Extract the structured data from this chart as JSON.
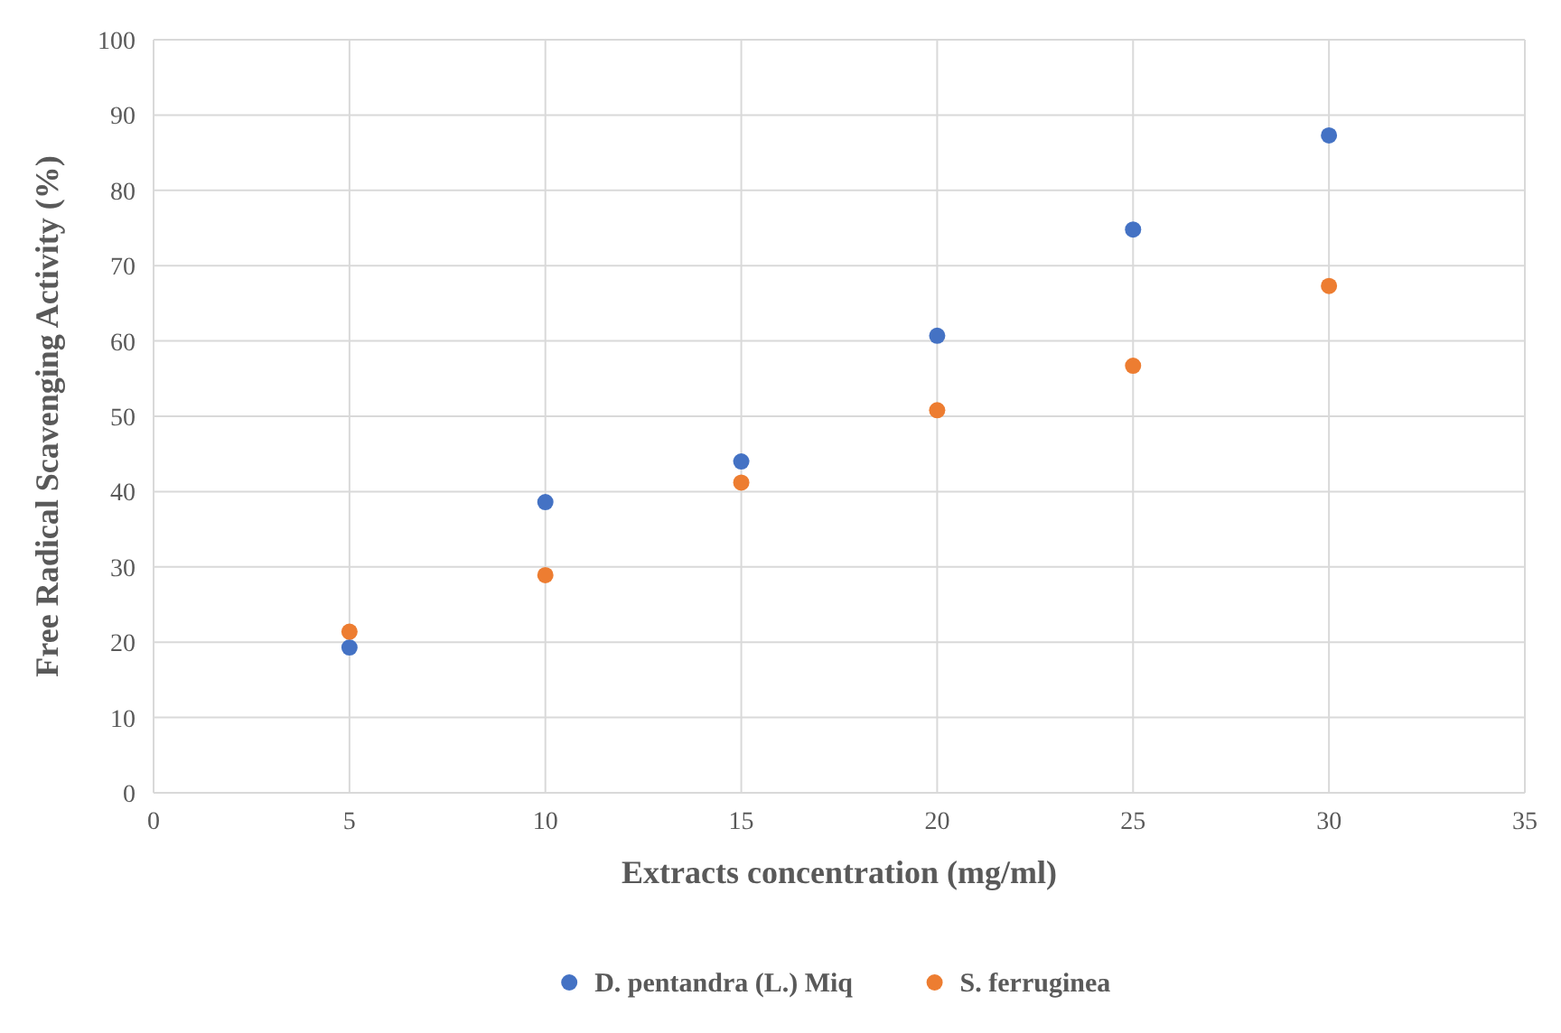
{
  "chart_data": {
    "type": "scatter",
    "xlabel": "Extracts concentration (mg/ml)",
    "ylabel": "Free Radical Scavenging  Activity (%)",
    "xlim": [
      0,
      35
    ],
    "xticks": [
      0,
      5,
      10,
      15,
      20,
      25,
      30,
      35
    ],
    "ylim": [
      0,
      100
    ],
    "yticks": [
      0,
      10,
      20,
      30,
      40,
      50,
      60,
      70,
      80,
      90,
      100
    ],
    "grid": true,
    "legend": "bottom",
    "marker": "circle",
    "x": [
      5,
      10,
      15,
      20,
      25,
      30
    ],
    "series": [
      {
        "name": "D. pentandra (L.) Miq",
        "color": "#4472c4",
        "values": [
          19.3,
          38.6,
          44,
          60.7,
          74.8,
          87.3
        ]
      },
      {
        "name": "S. ferruginea",
        "color": "#ed7d31",
        "values": [
          21.4,
          28.9,
          41.2,
          50.8,
          56.7,
          67.3
        ]
      }
    ]
  }
}
